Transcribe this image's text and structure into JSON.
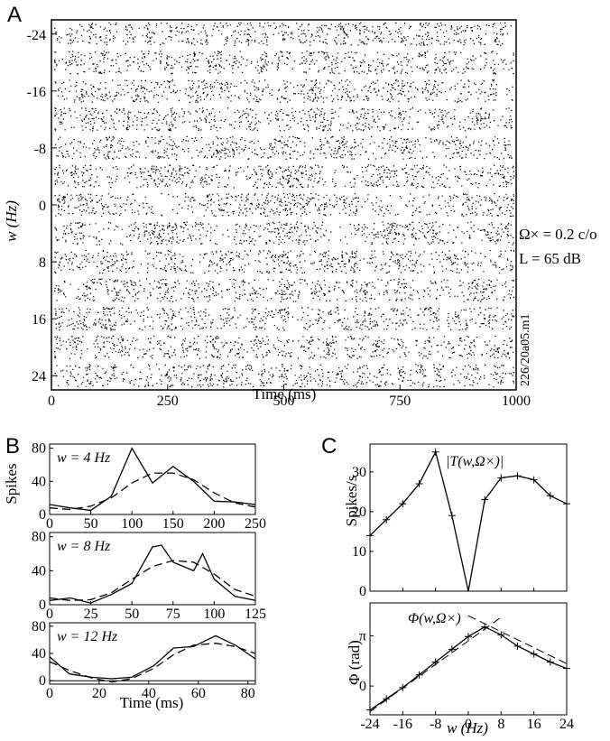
{
  "panels": {
    "a": {
      "letter": "A",
      "raster": {
        "ylabel": "w (Hz)",
        "xlabel": "Time (ms)",
        "xlim": [
          0,
          1000
        ],
        "xticks": [
          "0",
          "250",
          "500",
          "750",
          "1000"
        ],
        "yticks": [
          "-24",
          "-16",
          "-8",
          "0",
          "8",
          "16",
          "24"
        ],
        "annotation_line1": "Ω× = 0.2 c/o",
        "annotation_line2": "L = 65 dB",
        "cell_id": "226/20a05.m1",
        "rows_w": [
          -24,
          -20,
          -16,
          -12,
          -8,
          -4,
          0,
          4,
          8,
          12,
          16,
          20,
          24
        ]
      }
    },
    "b": {
      "letter": "B",
      "ylabel": "Spikes",
      "xlabel": "Time (ms)",
      "subplots": [
        {
          "label": "w = 4 Hz",
          "xlim": [
            0,
            250
          ],
          "ylim": [
            0,
            85
          ],
          "xticks": [
            "0",
            "50",
            "100",
            "150",
            "200",
            "250"
          ],
          "yticks": [
            "0",
            "40",
            "80"
          ],
          "histogram": {
            "x": [
              0,
              25,
              50,
              75,
              100,
              125,
              150,
              175,
              200,
              225,
              250
            ],
            "y": [
              12,
              8,
              5,
              22,
              80,
              38,
              58,
              40,
              16,
              15,
              12
            ]
          },
          "fit": {
            "x": [
              0,
              25,
              50,
              75,
              100,
              125,
              150,
              175,
              200,
              225,
              250
            ],
            "y": [
              8,
              6,
              10,
              20,
              38,
              50,
              50,
              42,
              26,
              14,
              9
            ]
          }
        },
        {
          "label": "w = 8 Hz",
          "xlim": [
            0,
            125
          ],
          "ylim": [
            0,
            85
          ],
          "xticks": [
            "0",
            "25",
            "50",
            "75",
            "100",
            "125"
          ],
          "yticks": [
            "0",
            "40",
            "80"
          ],
          "histogram": {
            "x": [
              0,
              12.5,
              25,
              37.5,
              50,
              62.5,
              68,
              75,
              87.5,
              93,
              100,
              112.5,
              125
            ],
            "y": [
              5,
              8,
              2,
              12,
              25,
              68,
              70,
              50,
              40,
              60,
              30,
              10,
              5
            ]
          },
          "fit": {
            "x": [
              0,
              12.5,
              25,
              37.5,
              50,
              62.5,
              75,
              87.5,
              100,
              112.5,
              125
            ],
            "y": [
              8,
              5,
              6,
              14,
              30,
              45,
              52,
              50,
              36,
              18,
              10
            ]
          }
        },
        {
          "label": "w = 12 Hz",
          "xlim": [
            0,
            83
          ],
          "ylim": [
            -5,
            85
          ],
          "xticks": [
            "0",
            "20",
            "40",
            "60",
            "80"
          ],
          "yticks": [
            "0",
            "40",
            "80"
          ],
          "histogram": {
            "x": [
              0,
              8,
              17,
              25,
              33,
              42,
              50,
              58,
              67,
              75,
              83
            ],
            "y": [
              35,
              10,
              5,
              3,
              5,
              22,
              48,
              50,
              66,
              52,
              32
            ]
          },
          "fit": {
            "x": [
              0,
              8,
              17,
              25,
              33,
              42,
              50,
              58,
              67,
              75,
              83
            ],
            "y": [
              28,
              15,
              4,
              -2,
              3,
              18,
              38,
              52,
              55,
              50,
              40
            ]
          }
        }
      ]
    },
    "c": {
      "letter": "C",
      "xlabel": "w (Hz)",
      "xticks": [
        "-24",
        "-16",
        "-8",
        "0",
        "8",
        "16",
        "24"
      ],
      "magnitude": {
        "ylabel": "Spikes/s",
        "label": "|T(w,Ω×)|",
        "ylim": [
          0,
          37
        ],
        "yticks": [
          "0",
          "10",
          "20",
          "30"
        ],
        "w": [
          -24,
          -20,
          -16,
          -12,
          -8,
          -4,
          0,
          4,
          8,
          12,
          16,
          20,
          24
        ],
        "values": [
          14,
          18,
          22,
          27,
          35,
          19,
          0,
          23,
          28.5,
          29,
          28,
          24,
          22
        ]
      },
      "phase": {
        "ylabel": "Φ (rad)",
        "label": "Φ(w,Ω×)",
        "ylim": [
          -1.8,
          5.2
        ],
        "yticks": [
          "0",
          "π"
        ],
        "w": [
          -24,
          -20,
          -16,
          -12,
          -8,
          -4,
          0,
          4,
          8,
          12,
          16,
          20,
          24
        ],
        "values": [
          -1.5,
          -0.8,
          -0.1,
          0.7,
          1.5,
          2.3,
          3.1,
          3.7,
          3.2,
          2.5,
          2.0,
          1.5,
          1.1
        ],
        "fit_line": {
          "w": [
            -24,
            8
          ],
          "values": [
            -1.6,
            4.3
          ]
        },
        "fit_line2": {
          "w": [
            0,
            24
          ],
          "values": [
            4.4,
            1.4
          ]
        }
      }
    }
  }
}
